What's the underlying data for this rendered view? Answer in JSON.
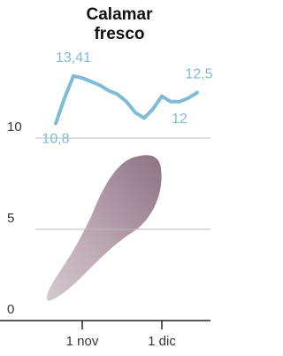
{
  "chart_data": {
    "type": "line",
    "title": "Calamar fresco",
    "categories": [
      null,
      null,
      null,
      "1 nov",
      null,
      null,
      null,
      null,
      null,
      null,
      null,
      null,
      "1 dic",
      null,
      null,
      null,
      null
    ],
    "series": [
      {
        "color": "#7fbcd4",
        "values": [
          10.8,
          12.2,
          13.41,
          13.3,
          13.1,
          12.9,
          12.6,
          12.4,
          12.0,
          11.4,
          11.1,
          11.6,
          12.3,
          12.0,
          12.0,
          12.2,
          12.5
        ],
        "value_labels": [
          "10,8",
          null,
          "13,41",
          null,
          null,
          null,
          null,
          null,
          null,
          null,
          null,
          null,
          null,
          null,
          "12",
          null,
          "12,5"
        ]
      }
    ],
    "ylim": [
      0,
      15
    ],
    "yticks": [
      0,
      5,
      10
    ],
    "grid": true
  }
}
